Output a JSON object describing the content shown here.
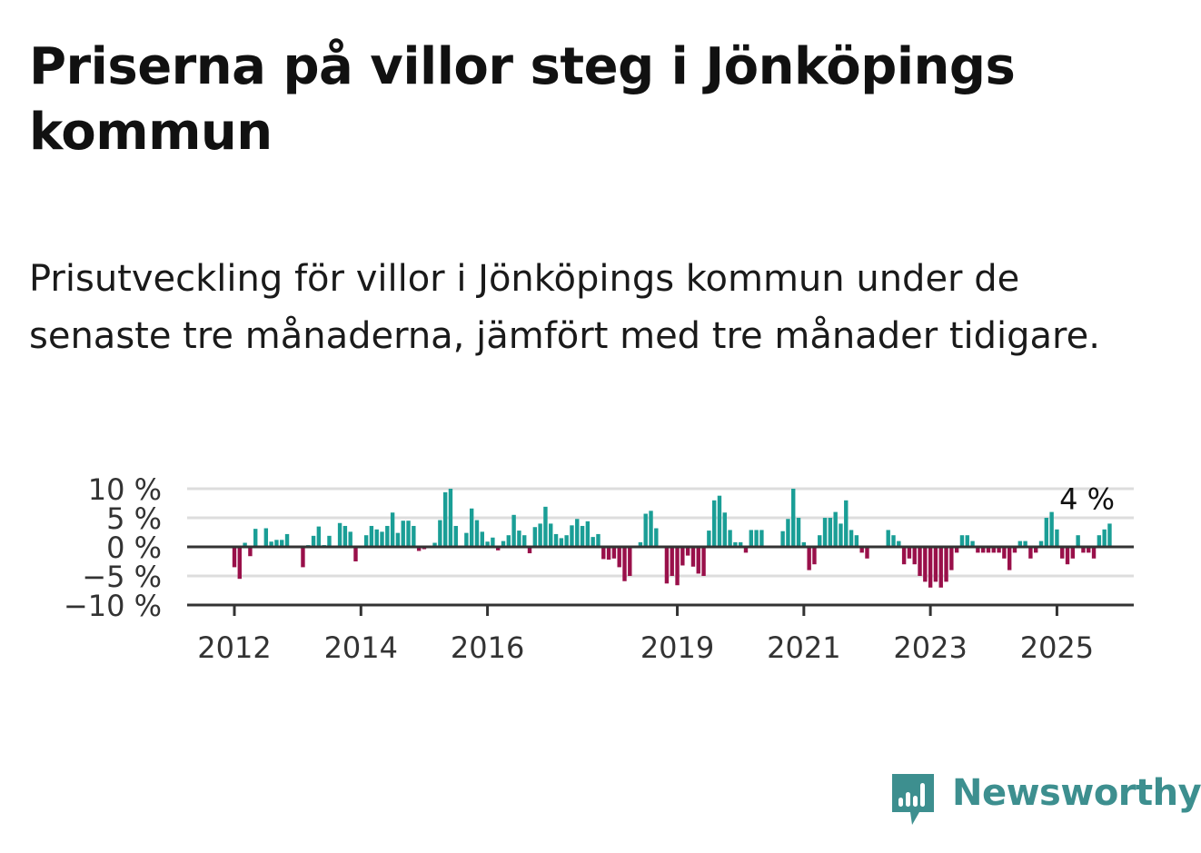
{
  "title": "Priserna på villor steg i Jönköpings kommun",
  "subtitle": "Prisutveckling för villor i Jönköpings kommun under de senaste tre månaderna, jämfört med tre månader tidigare.",
  "brand": {
    "name": "Newsworthy",
    "icon": "bar-chart-speech-bubble-icon",
    "color": "#3d8f8f"
  },
  "chart_data": {
    "type": "bar",
    "ylabel": "",
    "xlabel": "",
    "ylim": [
      -10,
      10
    ],
    "y_ticks": [
      10,
      5,
      0,
      -5,
      -10
    ],
    "y_tick_labels": [
      "10 %",
      "5 %",
      "0 %",
      "−5 %",
      "−10 %"
    ],
    "x_ticks": [
      "2012-01",
      "2014-01",
      "2016-01",
      "2019-01",
      "2021-01",
      "2023-01",
      "2025-01"
    ],
    "x_tick_labels": [
      "2012",
      "2014",
      "2016",
      "2019",
      "2021",
      "2023",
      "2025"
    ],
    "grid": true,
    "positive_color": "#1a9e96",
    "negative_color": "#99104a",
    "last_value_label": "4 %",
    "start": "2012-01",
    "values": [
      -3.5,
      -5.5,
      0.7,
      -1.6,
      3.1,
      0.2,
      3.2,
      0.9,
      1.2,
      1.2,
      2.2,
      0.2,
      0.0,
      -3.5,
      0.3,
      1.9,
      3.5,
      0.3,
      1.9,
      0.2,
      4.1,
      3.6,
      2.6,
      -2.5,
      0.2,
      2.0,
      3.6,
      3.0,
      2.6,
      3.6,
      5.9,
      2.4,
      4.5,
      4.5,
      3.6,
      -0.7,
      -0.4,
      0.0,
      0.7,
      4.6,
      9.4,
      10.0,
      3.6,
      0.2,
      2.4,
      6.6,
      4.6,
      2.6,
      0.9,
      1.6,
      -0.6,
      1.0,
      2.0,
      5.5,
      2.8,
      2.0,
      -1.1,
      3.4,
      4.0,
      6.9,
      4.0,
      2.2,
      1.5,
      2.0,
      3.7,
      4.8,
      3.6,
      4.4,
      1.7,
      2.2,
      -2.1,
      -2.2,
      -2.0,
      -3.5,
      -5.9,
      -5.0,
      0.0,
      0.8,
      5.7,
      6.2,
      3.2,
      0.0,
      -6.3,
      -5.0,
      -6.6,
      -3.2,
      -1.5,
      -3.4,
      -4.6,
      -5.0,
      2.8,
      8.0,
      8.8,
      5.9,
      2.9,
      0.8,
      0.8,
      -1.0,
      2.9,
      2.9,
      2.9,
      0.0,
      0.0,
      0.0,
      2.7,
      4.8,
      10.0,
      5.0,
      0.8,
      -4.0,
      -3.0,
      2.0,
      5.0,
      5.0,
      6.0,
      4.0,
      8.0,
      2.9,
      2.0,
      -1.0,
      -2.0,
      0.0,
      0.0,
      0.0,
      2.9,
      2.0,
      1.0,
      -3.0,
      -2.0,
      -3.0,
      -5.0,
      -6.0,
      -7.0,
      -6.0,
      -7.0,
      -6.0,
      -4.0,
      -1.0,
      2.0,
      2.0,
      1.0,
      -1.0,
      -1.0,
      -1.0,
      -1.0,
      -1.0,
      -2.0,
      -4.0,
      -1.0,
      1.0,
      1.0,
      -2.0,
      -1.0,
      1.0,
      5.0,
      6.0,
      3.0,
      -2.0,
      -3.0,
      -2.0,
      2.0,
      -1.0,
      -1.0,
      -2.0,
      2.0,
      3.0,
      4.0
    ]
  }
}
